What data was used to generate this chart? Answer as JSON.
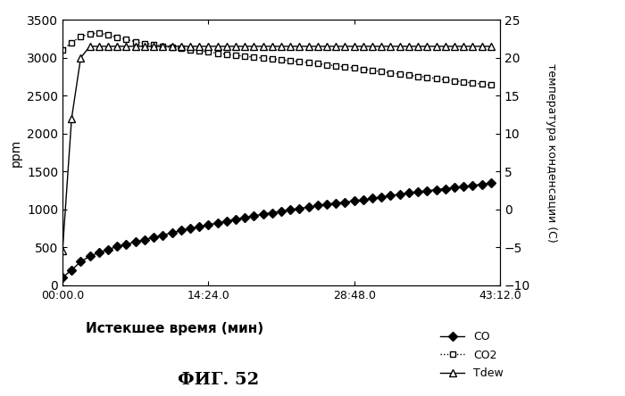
{
  "fig_title": "ФИГ. 52",
  "xlabel": "Истекшее время (мин)",
  "ylabel_left": "ppm",
  "ylabel_right": "температура конденсации (С)",
  "xlim": [
    0,
    2592
  ],
  "ylim_left": [
    0,
    3500
  ],
  "ylim_right": [
    -10,
    25
  ],
  "xtick_values": [
    0,
    864,
    1728,
    2592
  ],
  "xtick_labels": [
    "00:00.0",
    "14:24.0",
    "28:48.0",
    "43:12.0"
  ],
  "ytick_left": [
    0,
    500,
    1000,
    1500,
    2000,
    2500,
    3000,
    3500
  ],
  "ytick_right": [
    -10,
    -5,
    0,
    5,
    10,
    15,
    20,
    25
  ],
  "co_x": [
    0,
    54,
    108,
    162,
    216,
    270,
    324,
    378,
    432,
    486,
    540,
    594,
    648,
    702,
    756,
    810,
    864,
    918,
    972,
    1026,
    1080,
    1134,
    1188,
    1242,
    1296,
    1350,
    1404,
    1458,
    1512,
    1566,
    1620,
    1674,
    1728,
    1782,
    1836,
    1890,
    1944,
    1998,
    2052,
    2106,
    2160,
    2214,
    2268,
    2322,
    2376,
    2430,
    2484,
    2538
  ],
  "co_y": [
    100,
    200,
    310,
    380,
    430,
    470,
    510,
    540,
    570,
    600,
    630,
    660,
    690,
    720,
    745,
    770,
    795,
    820,
    845,
    870,
    892,
    915,
    935,
    955,
    975,
    995,
    1012,
    1030,
    1050,
    1065,
    1080,
    1095,
    1110,
    1125,
    1145,
    1160,
    1180,
    1200,
    1215,
    1230,
    1245,
    1258,
    1272,
    1285,
    1300,
    1315,
    1330,
    1350
  ],
  "co2_x": [
    0,
    54,
    108,
    162,
    216,
    270,
    324,
    378,
    432,
    486,
    540,
    594,
    648,
    702,
    756,
    810,
    864,
    918,
    972,
    1026,
    1080,
    1134,
    1188,
    1242,
    1296,
    1350,
    1404,
    1458,
    1512,
    1566,
    1620,
    1674,
    1728,
    1782,
    1836,
    1890,
    1944,
    1998,
    2052,
    2106,
    2160,
    2214,
    2268,
    2322,
    2376,
    2430,
    2484,
    2538
  ],
  "co2_y": [
    3100,
    3200,
    3280,
    3310,
    3330,
    3300,
    3270,
    3240,
    3210,
    3190,
    3170,
    3150,
    3135,
    3120,
    3105,
    3090,
    3075,
    3060,
    3045,
    3030,
    3020,
    3008,
    2997,
    2985,
    2972,
    2960,
    2948,
    2935,
    2920,
    2907,
    2893,
    2880,
    2865,
    2848,
    2832,
    2816,
    2800,
    2785,
    2770,
    2755,
    2740,
    2725,
    2710,
    2695,
    2680,
    2667,
    2653,
    2640
  ],
  "tdew_x": [
    0,
    54,
    108,
    162,
    216,
    270,
    324,
    378,
    432,
    486,
    540,
    594,
    648,
    702,
    756,
    810,
    864,
    918,
    972,
    1026,
    1080,
    1134,
    1188,
    1242,
    1296,
    1350,
    1404,
    1458,
    1512,
    1566,
    1620,
    1674,
    1728,
    1782,
    1836,
    1890,
    1944,
    1998,
    2052,
    2106,
    2160,
    2214,
    2268,
    2322,
    2376,
    2430,
    2484,
    2538
  ],
  "tdew_y": [
    -5.5,
    12,
    20,
    21.5,
    21.5,
    21.5,
    21.5,
    21.5,
    21.5,
    21.5,
    21.5,
    21.5,
    21.5,
    21.5,
    21.5,
    21.5,
    21.5,
    21.5,
    21.5,
    21.5,
    21.5,
    21.5,
    21.5,
    21.5,
    21.5,
    21.5,
    21.5,
    21.5,
    21.5,
    21.5,
    21.5,
    21.5,
    21.5,
    21.5,
    21.5,
    21.5,
    21.5,
    21.5,
    21.5,
    21.5,
    21.5,
    21.5,
    21.5,
    21.5,
    21.5,
    21.5,
    21.5,
    21.5
  ],
  "background_color": "#ffffff",
  "figsize": [
    7.0,
    4.44
  ],
  "dpi": 100
}
